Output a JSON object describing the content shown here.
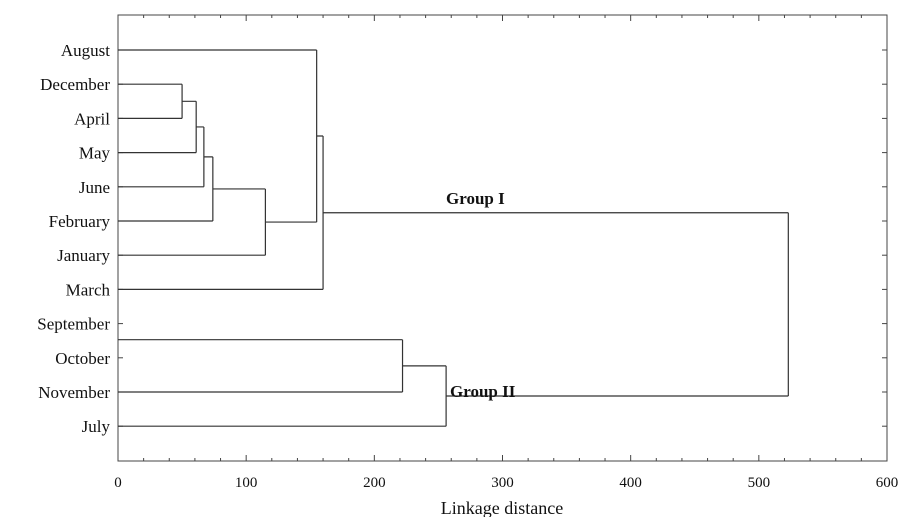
{
  "chart_data": {
    "type": "dendrogram",
    "xlabel": "Linkage distance",
    "xlim": [
      0,
      600
    ],
    "x_ticks": [
      0,
      100,
      200,
      300,
      400,
      500,
      600
    ],
    "leaves": [
      "August",
      "December",
      "April",
      "May",
      "June",
      "February",
      "January",
      "March",
      "September",
      "October",
      "November",
      "July"
    ],
    "merges": [
      {
        "left": "December",
        "right": "April",
        "distance": 50
      },
      {
        "left": "December+April",
        "right": "May",
        "distance": 61
      },
      {
        "left": "December+April+May",
        "right": "June",
        "distance": 67
      },
      {
        "left": "December+April+May+June",
        "right": "February",
        "distance": 74
      },
      {
        "left": "December+April+May+June+February",
        "right": "January",
        "distance": 115
      },
      {
        "left": "August",
        "right": "December+April+May+June+February+January",
        "distance": 155
      },
      {
        "left": "August+...+January",
        "right": "March",
        "distance": 160
      },
      {
        "left": "September+October",
        "right": "November",
        "distance": 222
      },
      {
        "left": "September+October+November",
        "right": "July",
        "distance": 256
      },
      {
        "left": "Group I",
        "right": "Group II",
        "distance": 523
      }
    ],
    "annotations": [
      {
        "text": "Group I"
      },
      {
        "text": "Group II"
      }
    ]
  }
}
